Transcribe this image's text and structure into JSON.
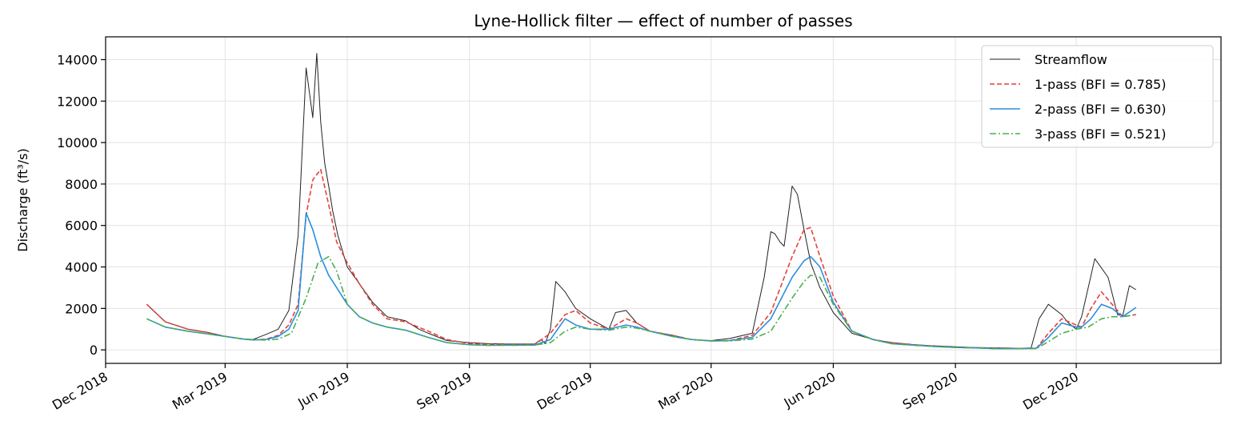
{
  "chart_data": {
    "type": "line",
    "title": "Lyne-Hollick filter — effect of number of passes",
    "xlabel": "",
    "ylabel": "Discharge (ft³/s)",
    "x_type": "date",
    "xlim": [
      "2018-12-01",
      "2021-03-20"
    ],
    "ylim": [
      -650,
      15100
    ],
    "grid": true,
    "legend_position": "upper right",
    "x_ticks": [
      {
        "date": "2018-12-01",
        "label": "Dec 2018"
      },
      {
        "date": "2019-03-01",
        "label": "Mar 2019"
      },
      {
        "date": "2019-06-01",
        "label": "Jun 2019"
      },
      {
        "date": "2019-09-01",
        "label": "Sep 2019"
      },
      {
        "date": "2019-12-01",
        "label": "Dec 2019"
      },
      {
        "date": "2020-03-01",
        "label": "Mar 2020"
      },
      {
        "date": "2020-06-01",
        "label": "Jun 2020"
      },
      {
        "date": "2020-09-01",
        "label": "Sep 2020"
      },
      {
        "date": "2020-12-01",
        "label": "Dec 2020"
      }
    ],
    "y_ticks": [
      0,
      2000,
      4000,
      6000,
      8000,
      10000,
      12000,
      14000
    ],
    "series": [
      {
        "name": "Streamflow",
        "color": "#222222",
        "dash": "solid",
        "x": [
          "2019-01-01",
          "2019-01-15",
          "2019-02-01",
          "2019-02-15",
          "2019-03-01",
          "2019-03-15",
          "2019-03-22",
          "2019-04-01",
          "2019-04-10",
          "2019-04-18",
          "2019-04-25",
          "2019-05-01",
          "2019-05-06",
          "2019-05-09",
          "2019-05-12",
          "2019-05-15",
          "2019-05-18",
          "2019-05-21",
          "2019-05-25",
          "2019-06-01",
          "2019-06-10",
          "2019-06-20",
          "2019-07-01",
          "2019-07-15",
          "2019-07-25",
          "2019-08-01",
          "2019-08-15",
          "2019-09-01",
          "2019-09-15",
          "2019-10-01",
          "2019-10-10",
          "2019-10-20",
          "2019-10-25",
          "2019-10-28",
          "2019-11-01",
          "2019-11-05",
          "2019-11-12",
          "2019-11-20",
          "2019-12-01",
          "2019-12-15",
          "2019-12-20",
          "2019-12-28",
          "2020-01-05",
          "2020-01-15",
          "2020-02-01",
          "2020-02-15",
          "2020-03-01",
          "2020-03-15",
          "2020-04-01",
          "2020-04-10",
          "2020-04-15",
          "2020-04-18",
          "2020-04-22",
          "2020-04-25",
          "2020-05-01",
          "2020-05-05",
          "2020-05-10",
          "2020-05-15",
          "2020-05-22",
          "2020-06-01",
          "2020-06-15",
          "2020-07-01",
          "2020-07-15",
          "2020-08-01",
          "2020-08-15",
          "2020-09-01",
          "2020-09-15",
          "2020-10-01",
          "2020-10-10",
          "2020-10-20",
          "2020-10-28",
          "2020-11-03",
          "2020-11-10",
          "2020-11-20",
          "2020-11-25",
          "2020-12-01",
          "2020-12-05",
          "2020-12-15",
          "2020-12-25",
          "2021-01-01",
          "2021-01-05",
          "2021-01-10",
          "2021-01-15"
        ],
        "values": [
          2200,
          1350,
          1000,
          850,
          650,
          520,
          500,
          750,
          1000,
          1900,
          5500,
          13600,
          11200,
          14300,
          11000,
          9000,
          7900,
          6700,
          5500,
          4000,
          3200,
          2300,
          1600,
          1400,
          1000,
          800,
          450,
          350,
          300,
          280,
          280,
          280,
          500,
          300,
          1000,
          3300,
          2800,
          2000,
          1500,
          1000,
          1800,
          1900,
          1300,
          900,
          700,
          500,
          450,
          550,
          800,
          3500,
          5700,
          5600,
          5200,
          5000,
          7900,
          7500,
          5800,
          4200,
          3000,
          1800,
          800,
          500,
          350,
          250,
          200,
          150,
          120,
          100,
          90,
          70,
          100,
          1500,
          2200,
          1700,
          1300,
          1000,
          1600,
          4400,
          3500,
          1700,
          1650,
          3100,
          2900
        ]
      },
      {
        "name": "1-pass (BFI = 0.785)",
        "color": "#e8413a",
        "dash": "dashed",
        "x": [
          "2019-01-01",
          "2019-01-15",
          "2019-02-01",
          "2019-02-15",
          "2019-03-01",
          "2019-03-15",
          "2019-03-22",
          "2019-04-01",
          "2019-04-10",
          "2019-04-18",
          "2019-04-25",
          "2019-05-01",
          "2019-05-06",
          "2019-05-12",
          "2019-05-18",
          "2019-05-24",
          "2019-06-01",
          "2019-06-10",
          "2019-06-20",
          "2019-07-01",
          "2019-07-15",
          "2019-08-01",
          "2019-08-15",
          "2019-09-01",
          "2019-09-15",
          "2019-10-01",
          "2019-10-20",
          "2019-11-01",
          "2019-11-12",
          "2019-11-20",
          "2019-12-01",
          "2019-12-15",
          "2019-12-28",
          "2020-01-05",
          "2020-01-15",
          "2020-02-01",
          "2020-02-15",
          "2020-03-01",
          "2020-03-15",
          "2020-04-01",
          "2020-04-15",
          "2020-05-01",
          "2020-05-10",
          "2020-05-15",
          "2020-05-22",
          "2020-06-01",
          "2020-06-15",
          "2020-07-01",
          "2020-07-15",
          "2020-08-01",
          "2020-08-15",
          "2020-09-01",
          "2020-09-15",
          "2020-10-01",
          "2020-10-20",
          "2020-11-01",
          "2020-11-10",
          "2020-11-20",
          "2020-12-01",
          "2020-12-05",
          "2020-12-12",
          "2020-12-20",
          "2020-12-28",
          "2021-01-05",
          "2021-01-15"
        ],
        "values": [
          2200,
          1350,
          1000,
          850,
          650,
          520,
          480,
          520,
          700,
          1200,
          2200,
          6500,
          8200,
          8700,
          7000,
          5200,
          4200,
          3200,
          2200,
          1500,
          1350,
          900,
          500,
          300,
          270,
          250,
          250,
          800,
          1700,
          1900,
          1300,
          1000,
          1500,
          1300,
          900,
          700,
          500,
          430,
          450,
          700,
          1800,
          4500,
          5800,
          5900,
          4500,
          2600,
          900,
          500,
          350,
          250,
          180,
          120,
          100,
          80,
          70,
          80,
          800,
          1500,
          1200,
          1100,
          2000,
          2800,
          2200,
          1600,
          1700
        ]
      },
      {
        "name": "2-pass (BFI = 0.630)",
        "color": "#2b8fdc",
        "dash": "solid",
        "x": [
          "2019-01-01",
          "2019-01-15",
          "2019-02-01",
          "2019-02-15",
          "2019-03-01",
          "2019-03-15",
          "2019-03-22",
          "2019-04-01",
          "2019-04-10",
          "2019-04-18",
          "2019-04-25",
          "2019-05-01",
          "2019-05-06",
          "2019-05-12",
          "2019-05-18",
          "2019-05-24",
          "2019-06-01",
          "2019-06-10",
          "2019-06-20",
          "2019-07-01",
          "2019-07-15",
          "2019-08-01",
          "2019-08-15",
          "2019-09-01",
          "2019-09-15",
          "2019-10-01",
          "2019-10-20",
          "2019-11-01",
          "2019-11-12",
          "2019-11-20",
          "2019-12-01",
          "2019-12-15",
          "2019-12-28",
          "2020-01-05",
          "2020-01-15",
          "2020-02-01",
          "2020-02-15",
          "2020-03-01",
          "2020-03-15",
          "2020-04-01",
          "2020-04-15",
          "2020-05-01",
          "2020-05-10",
          "2020-05-15",
          "2020-05-22",
          "2020-06-01",
          "2020-06-15",
          "2020-07-01",
          "2020-07-15",
          "2020-08-01",
          "2020-08-15",
          "2020-09-01",
          "2020-09-15",
          "2020-10-01",
          "2020-10-20",
          "2020-11-01",
          "2020-11-10",
          "2020-11-20",
          "2020-12-01",
          "2020-12-05",
          "2020-12-12",
          "2020-12-20",
          "2020-12-28",
          "2021-01-05",
          "2021-01-15"
        ],
        "values": [
          1500,
          1100,
          900,
          780,
          650,
          520,
          480,
          500,
          650,
          1000,
          1900,
          6600,
          5800,
          4500,
          3600,
          3000,
          2200,
          1600,
          1300,
          1100,
          950,
          600,
          350,
          250,
          220,
          230,
          230,
          500,
          1500,
          1200,
          1000,
          1000,
          1200,
          1100,
          900,
          650,
          500,
          430,
          450,
          600,
          1500,
          3500,
          4300,
          4500,
          4000,
          2300,
          900,
          500,
          300,
          230,
          170,
          120,
          100,
          60,
          60,
          80,
          600,
          1300,
          1100,
          1100,
          1500,
          2200,
          2000,
          1600,
          2050
        ]
      },
      {
        "name": "3-pass (BFI = 0.521)",
        "color": "#4caf50",
        "dash": "dashdot",
        "x": [
          "2019-01-01",
          "2019-01-15",
          "2019-02-01",
          "2019-02-15",
          "2019-03-01",
          "2019-03-15",
          "2019-04-01",
          "2019-04-10",
          "2019-04-20",
          "2019-05-01",
          "2019-05-10",
          "2019-05-18",
          "2019-05-24",
          "2019-06-01",
          "2019-06-10",
          "2019-06-20",
          "2019-07-01",
          "2019-07-15",
          "2019-08-01",
          "2019-08-15",
          "2019-09-01",
          "2019-09-15",
          "2019-10-01",
          "2019-10-20",
          "2019-11-01",
          "2019-11-12",
          "2019-11-20",
          "2019-12-01",
          "2019-12-15",
          "2019-12-28",
          "2020-01-05",
          "2020-01-15",
          "2020-02-01",
          "2020-02-15",
          "2020-03-01",
          "2020-03-15",
          "2020-04-01",
          "2020-04-15",
          "2020-05-01",
          "2020-05-10",
          "2020-05-15",
          "2020-05-22",
          "2020-06-01",
          "2020-06-15",
          "2020-07-01",
          "2020-07-15",
          "2020-08-01",
          "2020-08-15",
          "2020-09-01",
          "2020-09-15",
          "2020-10-01",
          "2020-10-20",
          "2020-11-01",
          "2020-11-10",
          "2020-11-20",
          "2020-12-01",
          "2020-12-10",
          "2020-12-20",
          "2020-12-28",
          "2021-01-05",
          "2021-01-15"
        ],
        "values": [
          1500,
          1100,
          900,
          780,
          650,
          520,
          470,
          520,
          800,
          2500,
          4200,
          4500,
          3800,
          2200,
          1600,
          1300,
          1100,
          950,
          600,
          350,
          250,
          220,
          220,
          230,
          350,
          900,
          1100,
          1000,
          950,
          1100,
          1050,
          900,
          650,
          500,
          430,
          430,
          520,
          900,
          2500,
          3300,
          3600,
          3500,
          2200,
          900,
          500,
          300,
          220,
          170,
          120,
          100,
          60,
          60,
          60,
          400,
          800,
          1000,
          1100,
          1500,
          1600,
          1600,
          1700
        ]
      }
    ]
  }
}
